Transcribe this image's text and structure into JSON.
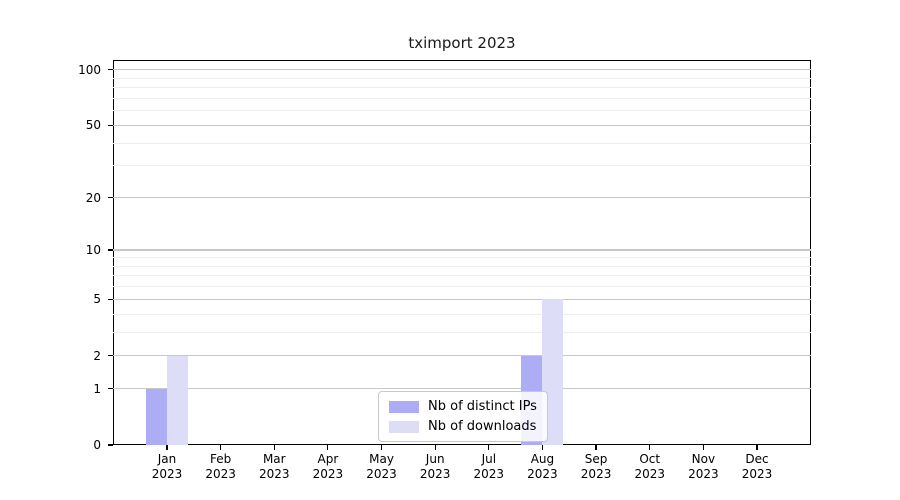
{
  "chart_data": {
    "type": "bar",
    "title": "tximport 2023",
    "categories": [
      "Jan",
      "Feb",
      "Mar",
      "Apr",
      "May",
      "Jun",
      "Jul",
      "Aug",
      "Sep",
      "Oct",
      "Nov",
      "Dec"
    ],
    "year_label": "2023",
    "series": [
      {
        "name": "Nb of distinct IPs",
        "color": "#ADADF6",
        "values": [
          1,
          0,
          0,
          0,
          0,
          0,
          0,
          2,
          0,
          0,
          0,
          0
        ]
      },
      {
        "name": "Nb of downloads",
        "color": "#DDDDF8",
        "values": [
          2,
          0,
          0,
          0,
          0,
          0,
          0,
          5,
          0,
          0,
          0,
          0
        ]
      }
    ],
    "xlabel": "",
    "ylabel": "",
    "yscale": "log1p",
    "ylim": [
      0,
      113
    ],
    "y_major_ticks": [
      0,
      1,
      2,
      5,
      10,
      20,
      50,
      100
    ],
    "y_minor_gridlines": [
      3,
      4,
      6,
      7,
      8,
      9,
      30,
      40,
      60,
      70,
      80,
      90
    ],
    "grid": "horizontal-major-and-minor",
    "legend_position": "bottom-center-inside"
  },
  "colors": {
    "background": "#ffffff",
    "major_grid": "#c8c8c8",
    "minor_grid": "#ededed",
    "spine": "#000000",
    "bar_distinct_ips": "#ADADF6",
    "bar_downloads": "#DDDDF8"
  }
}
